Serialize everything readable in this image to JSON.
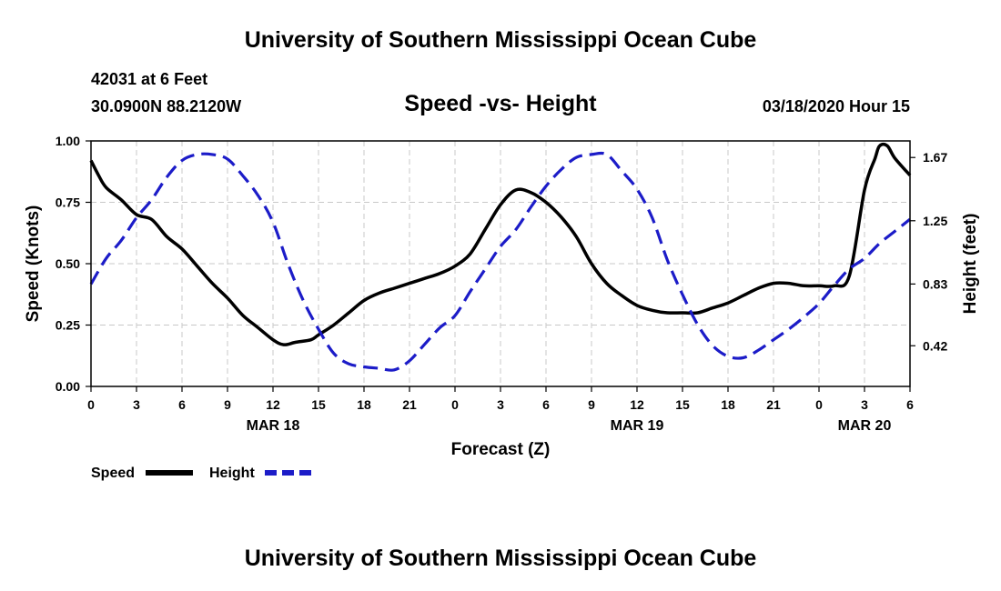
{
  "header": {
    "title": "University of Southern Mississippi Ocean Cube",
    "station": "42031 at 6 Feet",
    "coords": "30.0900N 88.2120W",
    "chart_title": "Speed -vs- Height",
    "datetime": "03/18/2020 Hour 15"
  },
  "footer": {
    "title": "University of Southern Mississippi Ocean Cube"
  },
  "chart_data": {
    "type": "line",
    "title": "Speed -vs- Height",
    "xlabel": "Forecast (Z)",
    "ylabel": "Speed (Knots)",
    "ylabel_right": "Height (feet)",
    "xlim": [
      0,
      54
    ],
    "ylim": [
      0,
      1
    ],
    "ylim_right": [
      0.15,
      1.78
    ],
    "x_ticks": [
      0,
      3,
      6,
      9,
      12,
      15,
      18,
      21,
      24,
      27,
      30,
      33,
      36,
      39,
      42,
      45,
      48,
      51,
      54
    ],
    "x_tick_labels": [
      "0",
      "3",
      "6",
      "9",
      "12",
      "15",
      "18",
      "21",
      "0",
      "3",
      "6",
      "9",
      "12",
      "15",
      "18",
      "21",
      "0",
      "3",
      "6"
    ],
    "y_ticks": [
      0,
      0.25,
      0.5,
      0.75,
      1.0
    ],
    "y_tick_labels": [
      "0.00",
      "0.25",
      "0.50",
      "0.75",
      "1.00"
    ],
    "y_right_ticks": [
      0.42,
      0.83,
      1.25,
      1.67
    ],
    "y_right_tick_labels": [
      "0.42",
      "0.83",
      "1.25",
      "1.67"
    ],
    "date_labels": [
      {
        "x": 12,
        "label": "MAR 18"
      },
      {
        "x": 36,
        "label": "MAR 19"
      },
      {
        "x": 51,
        "label": "MAR 20"
      }
    ],
    "grid": true,
    "legend": [
      {
        "name": "Speed",
        "color": "#000000",
        "style": "solid"
      },
      {
        "name": "Height",
        "color": "#1c1cc8",
        "style": "dashed"
      }
    ],
    "series": [
      {
        "name": "Speed",
        "axis": "left",
        "color": "#000000",
        "x": [
          0,
          0.5,
          1,
          2,
          3,
          4,
          5,
          6,
          7,
          8,
          9,
          10,
          11,
          12,
          12.7,
          13.5,
          14.5,
          15,
          16,
          17,
          18,
          19,
          20,
          21,
          22,
          23,
          24,
          25,
          26,
          27,
          28,
          29,
          30,
          31,
          32,
          33,
          34,
          35,
          36,
          37,
          38,
          39,
          40,
          41,
          42,
          43,
          44,
          45,
          46,
          47,
          48,
          49,
          50,
          51,
          51.7,
          52,
          52.5,
          53,
          54
        ],
        "y": [
          0.92,
          0.86,
          0.81,
          0.76,
          0.7,
          0.68,
          0.61,
          0.56,
          0.49,
          0.42,
          0.36,
          0.29,
          0.24,
          0.19,
          0.17,
          0.18,
          0.19,
          0.21,
          0.25,
          0.3,
          0.35,
          0.38,
          0.4,
          0.42,
          0.44,
          0.46,
          0.49,
          0.54,
          0.64,
          0.74,
          0.8,
          0.79,
          0.75,
          0.69,
          0.61,
          0.5,
          0.42,
          0.37,
          0.33,
          0.31,
          0.3,
          0.3,
          0.3,
          0.32,
          0.34,
          0.37,
          0.4,
          0.42,
          0.42,
          0.41,
          0.41,
          0.41,
          0.45,
          0.8,
          0.93,
          0.98,
          0.98,
          0.93,
          0.86
        ]
      },
      {
        "name": "Height",
        "axis": "right",
        "color": "#1c1cc8",
        "x": [
          0,
          1,
          2,
          3,
          4,
          5,
          6,
          7,
          8,
          9,
          10,
          11,
          12,
          13,
          14,
          15,
          16,
          17,
          18,
          19,
          20,
          21,
          22,
          23,
          24,
          25,
          26,
          27,
          28,
          29,
          30,
          31,
          32,
          33,
          34,
          35,
          36,
          37,
          38,
          39,
          40,
          41,
          42,
          43,
          44,
          45,
          46,
          47,
          48,
          49,
          50,
          51,
          52,
          53,
          54
        ],
        "y": [
          0.83,
          1.0,
          1.12,
          1.27,
          1.39,
          1.54,
          1.65,
          1.69,
          1.69,
          1.66,
          1.55,
          1.42,
          1.24,
          0.96,
          0.72,
          0.53,
          0.37,
          0.3,
          0.28,
          0.27,
          0.26,
          0.32,
          0.43,
          0.54,
          0.62,
          0.78,
          0.93,
          1.08,
          1.19,
          1.34,
          1.48,
          1.59,
          1.67,
          1.69,
          1.69,
          1.58,
          1.46,
          1.27,
          0.99,
          0.76,
          0.56,
          0.42,
          0.35,
          0.34,
          0.39,
          0.46,
          0.53,
          0.61,
          0.7,
          0.82,
          0.93,
          1.0,
          1.1,
          1.18,
          1.26
        ]
      }
    ]
  }
}
